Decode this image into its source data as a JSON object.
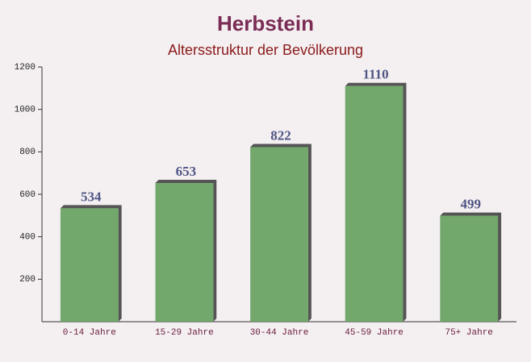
{
  "chart_data": {
    "type": "bar",
    "title": "Herbstein",
    "subtitle": "Altersstruktur der Bevölkerung",
    "categories": [
      "0-14 Jahre",
      "15-29 Jahre",
      "30-44 Jahre",
      "45-59 Jahre",
      "75+ Jahre"
    ],
    "values": [
      534,
      653,
      822,
      1110,
      499
    ],
    "color": "#6aa363",
    "ylim": [
      0,
      1200
    ],
    "yticks": [
      200,
      400,
      600,
      800,
      1000,
      1200
    ],
    "grid": false
  }
}
